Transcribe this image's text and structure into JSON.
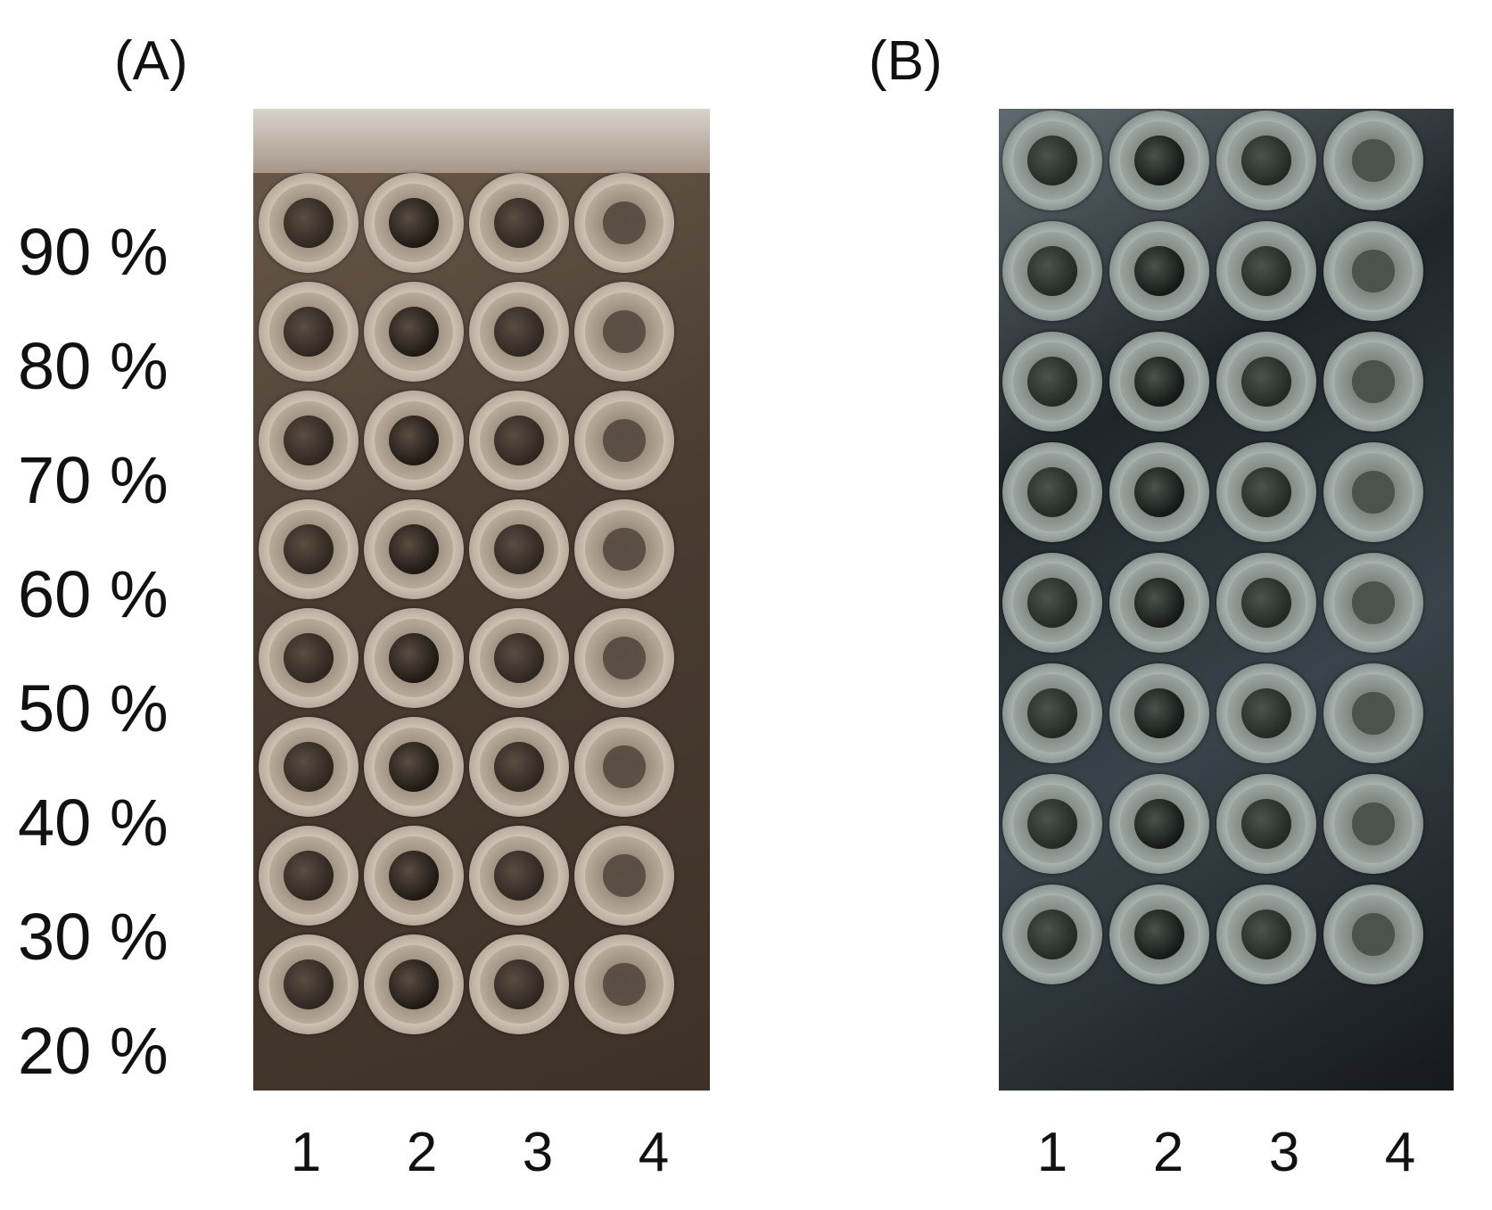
{
  "panels": [
    {
      "label": "(A)",
      "columns": [
        "1",
        "2",
        "3",
        "4"
      ]
    },
    {
      "label": "(B)",
      "columns": [
        "1",
        "2",
        "3",
        "4"
      ]
    }
  ],
  "rows": [
    "90 %",
    "80 %",
    "70 %",
    "60 %",
    "50 %",
    "40 %",
    "30 %",
    "20 %"
  ],
  "colors": {
    "plateA_background": "#4a3c31",
    "plateB_background": "#1f262a",
    "well_rim": "#e8e3dc"
  }
}
